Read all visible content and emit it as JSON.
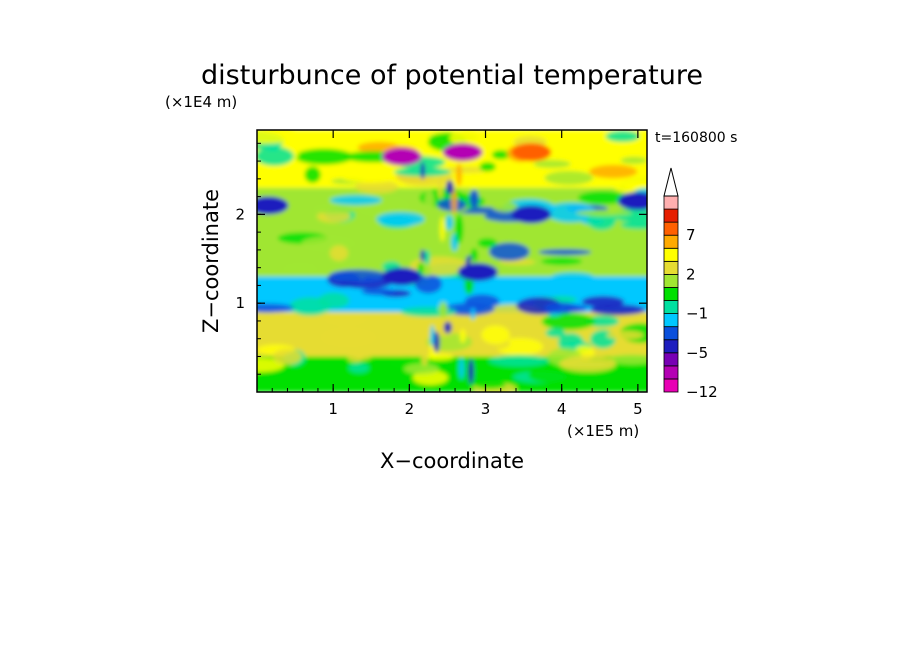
{
  "chart_data": {
    "type": "heatmap",
    "title": "disturbunce of potential temperature",
    "xlabel": "X−coordinate",
    "ylabel": "Z−coordinate",
    "x_unit_label": "(×1E5 m)",
    "y_unit_label": "(×1E4 m)",
    "time_label": "t=160800 s",
    "xlim": [
      0,
      5.12
    ],
    "ylim": [
      0,
      2.95
    ],
    "x_ticks": [
      "1",
      "2",
      "3",
      "4",
      "5"
    ],
    "y_ticks": [
      "1",
      "2"
    ],
    "colorbar": {
      "tick_labels": [
        "7",
        "2",
        "−1",
        "−5",
        "−12"
      ],
      "tick_values": [
        7,
        2,
        -1,
        -5,
        -12
      ],
      "levels": [
        -12,
        -9,
        -7,
        -5,
        -3,
        -2,
        -1,
        0,
        1,
        2,
        3,
        5,
        7,
        9,
        12
      ],
      "colors": [
        "#e800b4",
        "#b400b4",
        "#7800b4",
        "#1e1ebe",
        "#0a50dc",
        "#00c8ff",
        "#00e0a0",
        "#00e000",
        "#a0e632",
        "#e6dc32",
        "#ffff00",
        "#ffaa00",
        "#ff6000",
        "#e61e00",
        "#ffafaf"
      ],
      "extend_max": true
    },
    "field_layers": [
      {
        "z_range": [
          0.0,
          0.4
        ],
        "value": 0.5,
        "note": "near-surface mixed yellow/green"
      },
      {
        "z_range": [
          0.4,
          0.9
        ],
        "value": 2.5,
        "note": "warm orange layer"
      },
      {
        "z_range": [
          0.9,
          1.3
        ],
        "value": -1.5,
        "note": "cool cyan layer"
      },
      {
        "z_range": [
          1.3,
          2.3
        ],
        "value": 1.5,
        "note": "mixed yellow/green with orange bands"
      },
      {
        "z_range": [
          2.3,
          2.95
        ],
        "value": 4.0,
        "note": "upper warm layer with cold cores"
      }
    ],
    "features": [
      {
        "x": 0.15,
        "z": 2.1,
        "value": -5,
        "note": "cold core left edge"
      },
      {
        "x": 5.0,
        "z": 2.15,
        "value": -5,
        "note": "cold core right edge"
      },
      {
        "x": 1.9,
        "z": 2.65,
        "value": -9,
        "note": "cold cores upper centre"
      },
      {
        "x": 2.7,
        "z": 2.7,
        "value": -9
      },
      {
        "x": 3.6,
        "z": 2.7,
        "value": 7,
        "note": "warm core"
      },
      {
        "x": 1.9,
        "z": 1.3,
        "value": -5
      },
      {
        "x": 2.9,
        "z": 1.35,
        "value": -5
      },
      {
        "x": 3.6,
        "z": 2.0,
        "value": -5
      }
    ]
  }
}
